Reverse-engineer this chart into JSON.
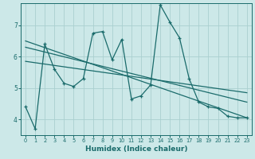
{
  "xlabel": "Humidex (Indice chaleur)",
  "xlim": [
    -0.5,
    23.5
  ],
  "ylim": [
    3.5,
    7.7
  ],
  "yticks": [
    4,
    5,
    6,
    7
  ],
  "xticks": [
    0,
    1,
    2,
    3,
    4,
    5,
    6,
    7,
    8,
    9,
    10,
    11,
    12,
    13,
    14,
    15,
    16,
    17,
    18,
    19,
    20,
    21,
    22,
    23
  ],
  "bg_color": "#cce8e8",
  "line_color": "#1a6b6b",
  "grid_color": "#aacfcf",
  "series1_x": [
    0,
    1,
    2,
    3,
    4,
    5,
    6,
    7,
    8,
    9,
    10,
    11,
    12,
    13,
    14,
    15,
    16,
    17,
    18,
    19,
    20,
    21,
    22,
    23
  ],
  "series1_y": [
    4.4,
    3.7,
    6.4,
    5.6,
    5.15,
    5.05,
    5.3,
    6.75,
    6.8,
    5.9,
    6.55,
    4.65,
    4.75,
    5.1,
    7.65,
    7.1,
    6.6,
    5.3,
    4.55,
    4.4,
    4.35,
    4.1,
    4.05,
    4.05
  ],
  "trendline1_x": [
    0,
    23
  ],
  "trendline1_y": [
    6.5,
    4.05
  ],
  "trendline2_x": [
    0,
    23
  ],
  "trendline2_y": [
    6.3,
    4.55
  ],
  "trendline3_x": [
    0,
    23
  ],
  "trendline3_y": [
    5.85,
    4.85
  ]
}
